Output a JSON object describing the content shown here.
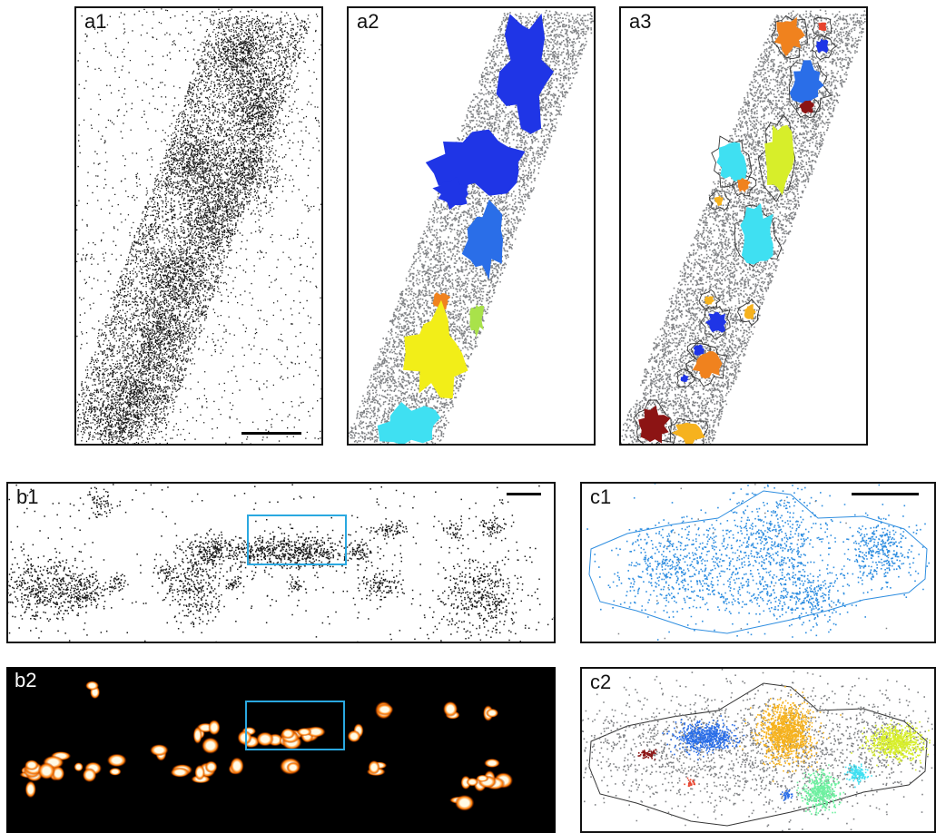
{
  "panels": {
    "a1": {
      "label": "a1",
      "style": "black localization points on white",
      "scale_bar": true
    },
    "a2": {
      "label": "a2",
      "style": "grey points with colored clusters"
    },
    "a3": {
      "label": "a3",
      "style": "grey points with outlined colored clusters"
    },
    "b1": {
      "label": "b1",
      "style": "black localization points on white",
      "scale_bar": true,
      "highlight_box": true
    },
    "b2": {
      "label": "b2",
      "style": "hot colormap density on black",
      "highlight_box": true
    },
    "c1": {
      "label": "c1",
      "style": "blue points inside blue outline",
      "scale_bar": true
    },
    "c2": {
      "label": "c2",
      "style": "grey points with colored clusters inside black outline"
    }
  },
  "colors": {
    "points_dark": "#1a1a1a",
    "points_grey": "#808285",
    "highlight": "#2aa8e0",
    "c1_blue": "#2f8ee0",
    "cluster_blue": "#1f35e6",
    "cluster_mid_blue": "#2a6ee8",
    "cluster_yellow": "#f2ee18",
    "cluster_orange": "#f0821e",
    "cluster_cyan": "#3fe0f2",
    "cluster_lightgreen": "#a9e24a",
    "cluster_darkred": "#8c1414",
    "cluster_gold": "#f6b21e",
    "cluster_lime": "#d7ee2a",
    "cluster_mint": "#6ef0a0",
    "cluster_red": "#e8432e",
    "heat_low": "#7a1500",
    "heat_mid": "#ff7a00",
    "heat_high": "#fffbe6"
  }
}
